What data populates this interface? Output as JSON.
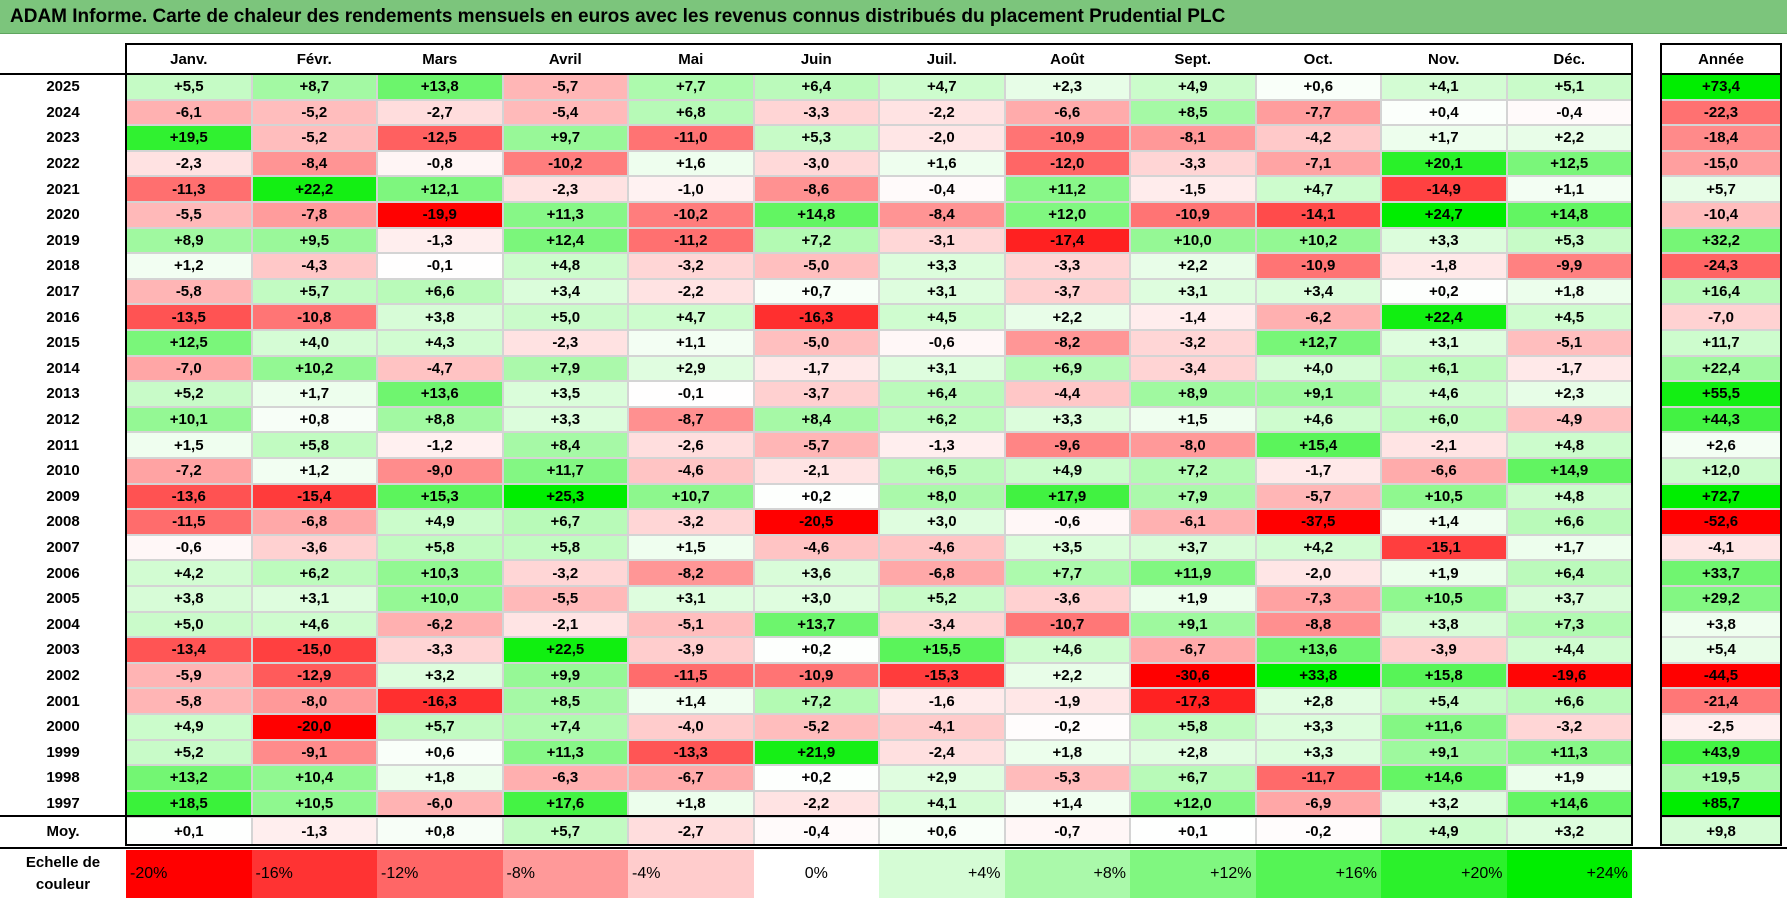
{
  "title": "ADAM Informe. Carte de chaleur des rendements mensuels en euros avec les revenus connus distribués du placement Prudential PLC",
  "chart_data": {
    "type": "heatmap",
    "title": "ADAM Informe. Carte de chaleur des rendements mensuels en euros avec les revenus connus distribués du placement Prudential PLC",
    "months": [
      "Janv.",
      "Févr.",
      "Mars",
      "Avril",
      "Mai",
      "Juin",
      "Juil.",
      "Août",
      "Sept.",
      "Oct.",
      "Nov.",
      "Déc."
    ],
    "year_header": "Année",
    "years": [
      "2025",
      "2024",
      "2023",
      "2022",
      "2021",
      "2020",
      "2019",
      "2018",
      "2017",
      "2016",
      "2015",
      "2014",
      "2013",
      "2012",
      "2011",
      "2010",
      "2009",
      "2008",
      "2007",
      "2006",
      "2005",
      "2004",
      "2003",
      "2002",
      "2001",
      "2000",
      "1999",
      "1998",
      "1997"
    ],
    "values": [
      [
        "+5,5",
        "+8,7",
        "+13,8",
        "-5,7",
        "+7,7",
        "+6,4",
        "+4,7",
        "+2,3",
        "+4,9",
        "+0,6",
        "+4,1",
        "+5,1"
      ],
      [
        "-6,1",
        "-5,2",
        "-2,7",
        "-5,4",
        "+6,8",
        "-3,3",
        "-2,2",
        "-6,6",
        "+8,5",
        "-7,7",
        "+0,4",
        "-0,4"
      ],
      [
        "+19,5",
        "-5,2",
        "-12,5",
        "+9,7",
        "-11,0",
        "+5,3",
        "-2,0",
        "-10,9",
        "-8,1",
        "-4,2",
        "+1,7",
        "+2,2"
      ],
      [
        "-2,3",
        "-8,4",
        "-0,8",
        "-10,2",
        "+1,6",
        "-3,0",
        "+1,6",
        "-12,0",
        "-3,3",
        "-7,1",
        "+20,1",
        "+12,5"
      ],
      [
        "-11,3",
        "+22,2",
        "+12,1",
        "-2,3",
        "-1,0",
        "-8,6",
        "-0,4",
        "+11,2",
        "-1,5",
        "+4,7",
        "-14,9",
        "+1,1"
      ],
      [
        "-5,5",
        "-7,8",
        "-19,9",
        "+11,3",
        "-10,2",
        "+14,8",
        "-8,4",
        "+12,0",
        "-10,9",
        "-14,1",
        "+24,7",
        "+14,8"
      ],
      [
        "+8,9",
        "+9,5",
        "-1,3",
        "+12,4",
        "-11,2",
        "+7,2",
        "-3,1",
        "-17,4",
        "+10,0",
        "+10,2",
        "+3,3",
        "+5,3"
      ],
      [
        "+1,2",
        "-4,3",
        "-0,1",
        "+4,8",
        "-3,2",
        "-5,0",
        "+3,3",
        "-3,3",
        "+2,2",
        "-10,9",
        "-1,8",
        "-9,9"
      ],
      [
        "-5,8",
        "+5,7",
        "+6,6",
        "+3,4",
        "-2,2",
        "+0,7",
        "+3,1",
        "-3,7",
        "+3,1",
        "+3,4",
        "+0,2",
        "+1,8"
      ],
      [
        "-13,5",
        "-10,8",
        "+3,8",
        "+5,0",
        "+4,7",
        "-16,3",
        "+4,5",
        "+2,2",
        "-1,4",
        "-6,2",
        "+22,4",
        "+4,5"
      ],
      [
        "+12,5",
        "+4,0",
        "+4,3",
        "-2,3",
        "+1,1",
        "-5,0",
        "-0,6",
        "-8,2",
        "-3,2",
        "+12,7",
        "+3,1",
        "-5,1"
      ],
      [
        "-7,0",
        "+10,2",
        "-4,7",
        "+7,9",
        "+2,9",
        "-1,7",
        "+3,1",
        "+6,9",
        "-3,4",
        "+4,0",
        "+6,1",
        "-1,7"
      ],
      [
        "+5,2",
        "+1,7",
        "+13,6",
        "+3,5",
        "-0,1",
        "-3,7",
        "+6,4",
        "-4,4",
        "+8,9",
        "+9,1",
        "+4,6",
        "+2,3"
      ],
      [
        "+10,1",
        "+0,8",
        "+8,8",
        "+3,3",
        "-8,7",
        "+8,4",
        "+6,2",
        "+3,3",
        "+1,5",
        "+4,6",
        "+6,0",
        "-4,9"
      ],
      [
        "+1,5",
        "+5,8",
        "-1,2",
        "+8,4",
        "-2,6",
        "-5,7",
        "-1,3",
        "-9,6",
        "-8,0",
        "+15,4",
        "-2,1",
        "+4,8"
      ],
      [
        "-7,2",
        "+1,2",
        "-9,0",
        "+11,7",
        "-4,6",
        "-2,1",
        "+6,5",
        "+4,9",
        "+7,2",
        "-1,7",
        "-6,6",
        "+14,9"
      ],
      [
        "-13,6",
        "-15,4",
        "+15,3",
        "+25,3",
        "+10,7",
        "+0,2",
        "+8,0",
        "+17,9",
        "+7,9",
        "-5,7",
        "+10,5",
        "+4,8"
      ],
      [
        "-11,5",
        "-6,8",
        "+4,9",
        "+6,7",
        "-3,2",
        "-20,5",
        "+3,0",
        "-0,6",
        "-6,1",
        "-37,5",
        "+1,4",
        "+6,6"
      ],
      [
        "-0,6",
        "-3,6",
        "+5,8",
        "+5,8",
        "+1,5",
        "-4,6",
        "-4,6",
        "+3,5",
        "+3,7",
        "+4,2",
        "-15,1",
        "+1,7"
      ],
      [
        "+4,2",
        "+6,2",
        "+10,3",
        "-3,2",
        "-8,2",
        "+3,6",
        "-6,8",
        "+7,7",
        "+11,9",
        "-2,0",
        "+1,9",
        "+6,4"
      ],
      [
        "+3,8",
        "+3,1",
        "+10,0",
        "-5,5",
        "+3,1",
        "+3,0",
        "+5,2",
        "-3,6",
        "+1,9",
        "-7,3",
        "+10,5",
        "+3,7"
      ],
      [
        "+5,0",
        "+4,6",
        "-6,2",
        "-2,1",
        "-5,1",
        "+13,7",
        "-3,4",
        "-10,7",
        "+9,1",
        "-8,8",
        "+3,8",
        "+7,3"
      ],
      [
        "-13,4",
        "-15,0",
        "-3,3",
        "+22,5",
        "-3,9",
        "+0,2",
        "+15,5",
        "+4,6",
        "-6,7",
        "+13,6",
        "-3,9",
        "+4,4"
      ],
      [
        "-5,9",
        "-12,9",
        "+3,2",
        "+9,9",
        "-11,5",
        "-10,9",
        "-15,3",
        "+2,2",
        "-30,6",
        "+33,8",
        "+15,8",
        "-19,6"
      ],
      [
        "-5,8",
        "-8,0",
        "-16,3",
        "+8,5",
        "+1,4",
        "+7,2",
        "-1,6",
        "-1,9",
        "-17,3",
        "+2,8",
        "+5,4",
        "+6,6"
      ],
      [
        "+4,9",
        "-20,0",
        "+5,7",
        "+7,4",
        "-4,0",
        "-5,2",
        "-4,1",
        "-0,2",
        "+5,8",
        "+3,3",
        "+11,6",
        "-3,2"
      ],
      [
        "+5,2",
        "-9,1",
        "+0,6",
        "+11,3",
        "-13,3",
        "+21,9",
        "-2,4",
        "+1,8",
        "+2,8",
        "+3,3",
        "+9,1",
        "+11,3"
      ],
      [
        "+13,2",
        "+10,4",
        "+1,8",
        "-6,3",
        "-6,7",
        "+0,2",
        "+2,9",
        "-5,3",
        "+6,7",
        "-11,7",
        "+14,6",
        "+1,9"
      ],
      [
        "+18,5",
        "+10,5",
        "-6,0",
        "+17,6",
        "+1,8",
        "-2,2",
        "+4,1",
        "+1,4",
        "+12,0",
        "-6,9",
        "+3,2",
        "+14,6"
      ]
    ],
    "year_totals": [
      "+73,4",
      "-22,3",
      "-18,4",
      "-15,0",
      "+5,7",
      "-10,4",
      "+32,2",
      "-24,3",
      "+16,4",
      "-7,0",
      "+11,7",
      "+22,4",
      "+55,5",
      "+44,3",
      "+2,6",
      "+12,0",
      "+72,7",
      "-52,6",
      "-4,1",
      "+33,7",
      "+29,2",
      "+3,8",
      "+5,4",
      "-44,5",
      "-21,4",
      "-2,5",
      "+43,9",
      "+19,5",
      "+85,7"
    ],
    "average_label": "Moy.",
    "averages": [
      "+0,1",
      "-1,3",
      "+0,8",
      "+5,7",
      "-2,7",
      "-0,4",
      "+0,6",
      "-0,7",
      "+0,1",
      "-0,2",
      "+4,9",
      "+3,2"
    ],
    "average_total": "+9,8",
    "scale_label_line1": "Echelle de",
    "scale_label_line2": "couleur",
    "scale": [
      "-20%",
      "-16%",
      "-12%",
      "-8%",
      "-4%",
      "0%",
      "+4%",
      "+8%",
      "+12%",
      "+16%",
      "+20%",
      "+24%"
    ],
    "colors": {
      "strong_negative": "#ff0000",
      "neutral": "#ffffff",
      "strong_positive": "#00ee00",
      "title_bar": "#7cc57c"
    }
  }
}
